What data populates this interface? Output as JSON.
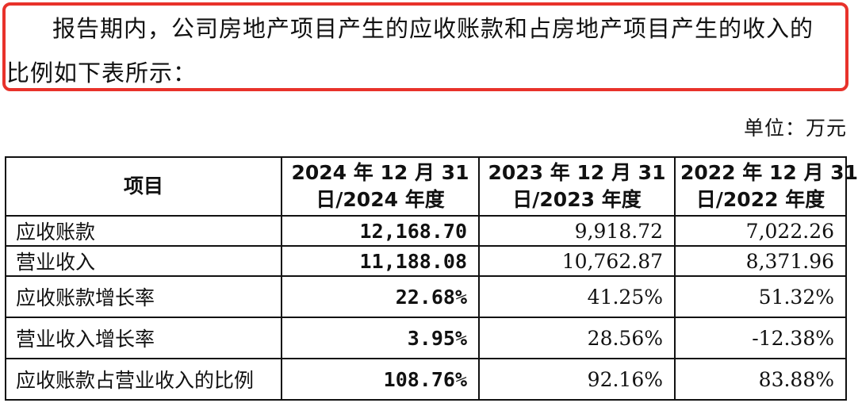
{
  "paragraph": {
    "line1": "报告期内，公司房地产项目产生的应收账款和占房地产项目产生的收入的",
    "line2": "比例如下表所示："
  },
  "unit_label": "单位：万元",
  "table": {
    "headers": [
      {
        "line1": "项目",
        "line2": ""
      },
      {
        "line1": "2024 年 12 月 31",
        "line2": "日/2024 年度"
      },
      {
        "line1": "2023 年 12 月 31",
        "line2": "日/2023 年度"
      },
      {
        "line1": "2022 年 12 月 31",
        "line2": "日/2022 年度"
      }
    ],
    "rows": [
      {
        "label": "应收账款",
        "v2024": "12,168.70",
        "v2023": "9,918.72",
        "v2022": "7,022.26"
      },
      {
        "label": "营业收入",
        "v2024": "11,188.08",
        "v2023": "10,762.87",
        "v2022": "8,371.96"
      },
      {
        "label": "应收账款增长率",
        "v2024": "22.68%",
        "v2023": "41.25%",
        "v2022": "51.32%"
      },
      {
        "label": "营业收入增长率",
        "v2024": "3.95%",
        "v2023": "28.56%",
        "v2022": "-12.38%"
      },
      {
        "label": "应收账款占营业收入的比例",
        "v2024": "108.76%",
        "v2023": "92.16%",
        "v2022": "83.88%"
      }
    ]
  },
  "colors": {
    "highlight_border": "#e8322b"
  }
}
